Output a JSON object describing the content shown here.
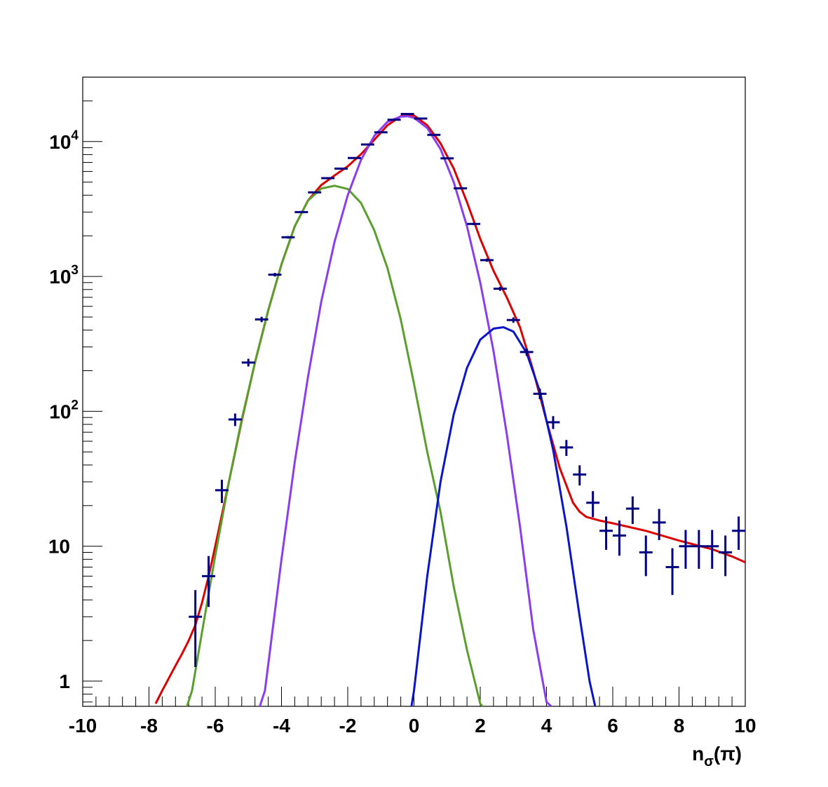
{
  "chart_data": {
    "type": "scatter",
    "title": "",
    "xlabel": "n_σ(π)",
    "xlabel_main": "n",
    "xlabel_sub": "σ",
    "xlabel_paren": "(π)",
    "ylabel": "",
    "xlim": [
      -10,
      10
    ],
    "ylim": [
      0.65,
      30000
    ],
    "y_scale": "log",
    "grid": false,
    "x_ticks": [
      -10,
      -8,
      -6,
      -4,
      -2,
      0,
      2,
      4,
      6,
      8,
      10
    ],
    "x_tick_labels": [
      "-10",
      "-8",
      "-6",
      "-4",
      "-2",
      "0",
      "2",
      "4",
      "6",
      "8",
      "10"
    ],
    "y_ticks": [
      {
        "value": 1,
        "base": "1",
        "exp": ""
      },
      {
        "value": 10,
        "base": "10",
        "exp": ""
      },
      {
        "value": 100,
        "base": "10",
        "exp": "2"
      },
      {
        "value": 1000,
        "base": "10",
        "exp": "3"
      },
      {
        "value": 10000,
        "base": "10",
        "exp": "4"
      }
    ],
    "data_points": {
      "name": "",
      "color": "#000080",
      "x_halfwidth": 0.2,
      "points": [
        {
          "x": -6.6,
          "y": 3,
          "err": 1.73
        },
        {
          "x": -6.2,
          "y": 6,
          "err": 2.45
        },
        {
          "x": -5.8,
          "y": 26,
          "err": 5.1
        },
        {
          "x": -5.4,
          "y": 87,
          "err": 9.3
        },
        {
          "x": -5.0,
          "y": 230,
          "err": 15
        },
        {
          "x": -4.6,
          "y": 480,
          "err": 22
        },
        {
          "x": -4.2,
          "y": 1030,
          "err": 32
        },
        {
          "x": -3.8,
          "y": 1950,
          "err": 44
        },
        {
          "x": -3.4,
          "y": 3000,
          "err": 55
        },
        {
          "x": -3.0,
          "y": 4200,
          "err": 65
        },
        {
          "x": -2.6,
          "y": 5350,
          "err": 73
        },
        {
          "x": -2.2,
          "y": 6300,
          "err": 79
        },
        {
          "x": -1.8,
          "y": 7550,
          "err": 87
        },
        {
          "x": -1.4,
          "y": 9500,
          "err": 97
        },
        {
          "x": -1.0,
          "y": 11700,
          "err": 108
        },
        {
          "x": -0.6,
          "y": 14500,
          "err": 120
        },
        {
          "x": -0.2,
          "y": 16000,
          "err": 126
        },
        {
          "x": 0.2,
          "y": 14800,
          "err": 122
        },
        {
          "x": 0.6,
          "y": 11200,
          "err": 106
        },
        {
          "x": 1.0,
          "y": 7500,
          "err": 87
        },
        {
          "x": 1.4,
          "y": 4500,
          "err": 67
        },
        {
          "x": 1.8,
          "y": 2450,
          "err": 49
        },
        {
          "x": 2.2,
          "y": 1320,
          "err": 36
        },
        {
          "x": 2.6,
          "y": 810,
          "err": 28
        },
        {
          "x": 3.0,
          "y": 475,
          "err": 22
        },
        {
          "x": 3.4,
          "y": 275,
          "err": 17
        },
        {
          "x": 3.8,
          "y": 135,
          "err": 12
        },
        {
          "x": 4.2,
          "y": 83,
          "err": 9.1
        },
        {
          "x": 4.6,
          "y": 54,
          "err": 7.3
        },
        {
          "x": 5.0,
          "y": 34,
          "err": 5.8
        },
        {
          "x": 5.4,
          "y": 21,
          "err": 4.6
        },
        {
          "x": 5.8,
          "y": 13,
          "err": 3.6
        },
        {
          "x": 6.2,
          "y": 12,
          "err": 3.5
        },
        {
          "x": 6.6,
          "y": 19,
          "err": 4.4
        },
        {
          "x": 7.0,
          "y": 9,
          "err": 3
        },
        {
          "x": 7.4,
          "y": 15,
          "err": 3.9
        },
        {
          "x": 7.8,
          "y": 7,
          "err": 2.65
        },
        {
          "x": 8.2,
          "y": 10,
          "err": 3.2
        },
        {
          "x": 8.6,
          "y": 10,
          "err": 3.2
        },
        {
          "x": 9.0,
          "y": 10,
          "err": 3.2
        },
        {
          "x": 9.4,
          "y": 9,
          "err": 3
        },
        {
          "x": 9.8,
          "y": 13,
          "err": 3.6
        }
      ]
    },
    "series": [
      {
        "name": "",
        "color": "#dd0000",
        "x": [
          -7.8,
          -7.6,
          -7.4,
          -7.2,
          -7.0,
          -6.8,
          -6.6,
          -6.4,
          -6.2,
          -6.0,
          -5.6,
          -5.2,
          -4.8,
          -4.4,
          -4.0,
          -3.6,
          -3.2,
          -2.8,
          -2.4,
          -2.0,
          -1.6,
          -1.2,
          -0.8,
          -0.4,
          -0.2,
          0.0,
          0.4,
          0.8,
          1.2,
          1.6,
          2.0,
          2.4,
          2.8,
          3.2,
          3.6,
          4.0,
          4.4,
          4.8,
          5.0,
          5.2,
          5.6,
          6.0,
          7.0,
          8.0,
          9.0,
          9.6,
          10.0
        ],
        "y": [
          0.68,
          0.85,
          1.05,
          1.3,
          1.6,
          2.0,
          2.6,
          3.8,
          6.0,
          10,
          29,
          85,
          230,
          560,
          1230,
          2350,
          3650,
          4750,
          5600,
          6550,
          8050,
          10300,
          13200,
          15400,
          15800,
          15600,
          13200,
          9700,
          6300,
          3550,
          1900,
          1100,
          700,
          420,
          200,
          85,
          38,
          21,
          18,
          16.5,
          15.5,
          14.8,
          13,
          11,
          9.5,
          8.4,
          7.6
        ]
      },
      {
        "name": "",
        "color": "#5a9e2e",
        "x": [
          -6.9,
          -6.7,
          -6.4,
          -6.0,
          -5.6,
          -5.2,
          -4.8,
          -4.4,
          -4.0,
          -3.6,
          -3.2,
          -2.8,
          -2.4,
          -2.0,
          -1.6,
          -1.2,
          -0.8,
          -0.4,
          0.0,
          0.4,
          0.8,
          1.2,
          1.6,
          2.0,
          2.2
        ],
        "y": [
          0.6,
          0.85,
          2.3,
          8.5,
          29,
          87,
          230,
          560,
          1230,
          2350,
          3650,
          4480,
          4700,
          4450,
          3500,
          2200,
          1150,
          480,
          160,
          50,
          18,
          5,
          1.7,
          0.68,
          0.6
        ]
      },
      {
        "name": "",
        "color": "#8a3cf0",
        "x": [
          -4.7,
          -4.5,
          -4.0,
          -3.6,
          -3.2,
          -2.8,
          -2.4,
          -2.0,
          -1.6,
          -1.2,
          -0.8,
          -0.4,
          -0.2,
          0.0,
          0.4,
          0.8,
          1.2,
          1.6,
          2.0,
          2.4,
          2.8,
          3.2,
          3.6,
          4.0,
          4.3
        ],
        "y": [
          0.6,
          0.85,
          8,
          42,
          180,
          650,
          1800,
          4000,
          7300,
          11000,
          14000,
          15300,
          15400,
          15000,
          12600,
          8800,
          5000,
          2350,
          900,
          280,
          68,
          14,
          2.4,
          0.7,
          0.6
        ]
      },
      {
        "name": "",
        "color": "#0a14c8",
        "x": [
          -0.1,
          0.0,
          0.4,
          0.8,
          1.2,
          1.6,
          2.0,
          2.4,
          2.7,
          3.0,
          3.4,
          3.8,
          4.2,
          4.6,
          5.0,
          5.3,
          5.5
        ],
        "y": [
          0.6,
          0.85,
          6,
          30,
          95,
          210,
          340,
          410,
          420,
          390,
          270,
          140,
          52,
          14,
          3,
          1,
          0.6
        ]
      }
    ]
  }
}
